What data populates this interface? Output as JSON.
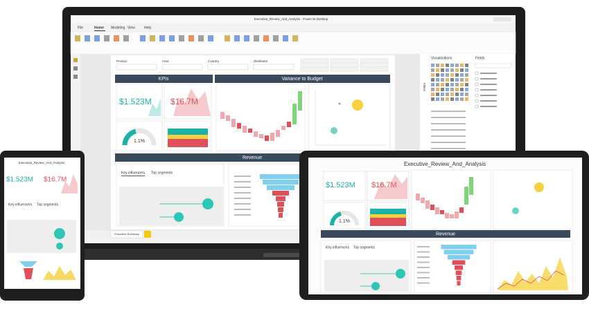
{
  "laptop": {
    "window_title": "Executive_Review_And_Analysis - Power BI Desktop",
    "ribbon_tabs": [
      "File",
      "Home",
      "Modeling",
      "View",
      "Help"
    ],
    "filters": [
      "Product",
      "Area",
      "Country",
      "Distributor"
    ],
    "kpis_header": "KPIs",
    "variance_header": "Variance to Budget",
    "revenue_header": "Revenue",
    "total_revenue": "$1.523M",
    "revenue_vs_budget": "$16.7M",
    "gauge_value": "1.1%",
    "key_influencers": "Key influencers",
    "top_segments": "Top segments",
    "page_tab": "Executive Summary",
    "visualizations": "Visualizations",
    "fields": "Fields",
    "filters_pane": "Filters"
  },
  "tablet": {
    "title": "Executive_Review_And_Analysis",
    "total_revenue": "$1.523M",
    "revenue_vs_budget": "$16.7M",
    "gauge_value": "1.1%",
    "revenue_header": "Revenue",
    "key_influencers": "Key influencers",
    "top_segments": "Top segments"
  },
  "phone": {
    "title": "Executive_Review_And_Analysis",
    "total_revenue": "$1.523M",
    "revenue_vs_budget": "$16.7M",
    "key_influencers": "Key influencers",
    "top_segments": "Top segments"
  }
}
